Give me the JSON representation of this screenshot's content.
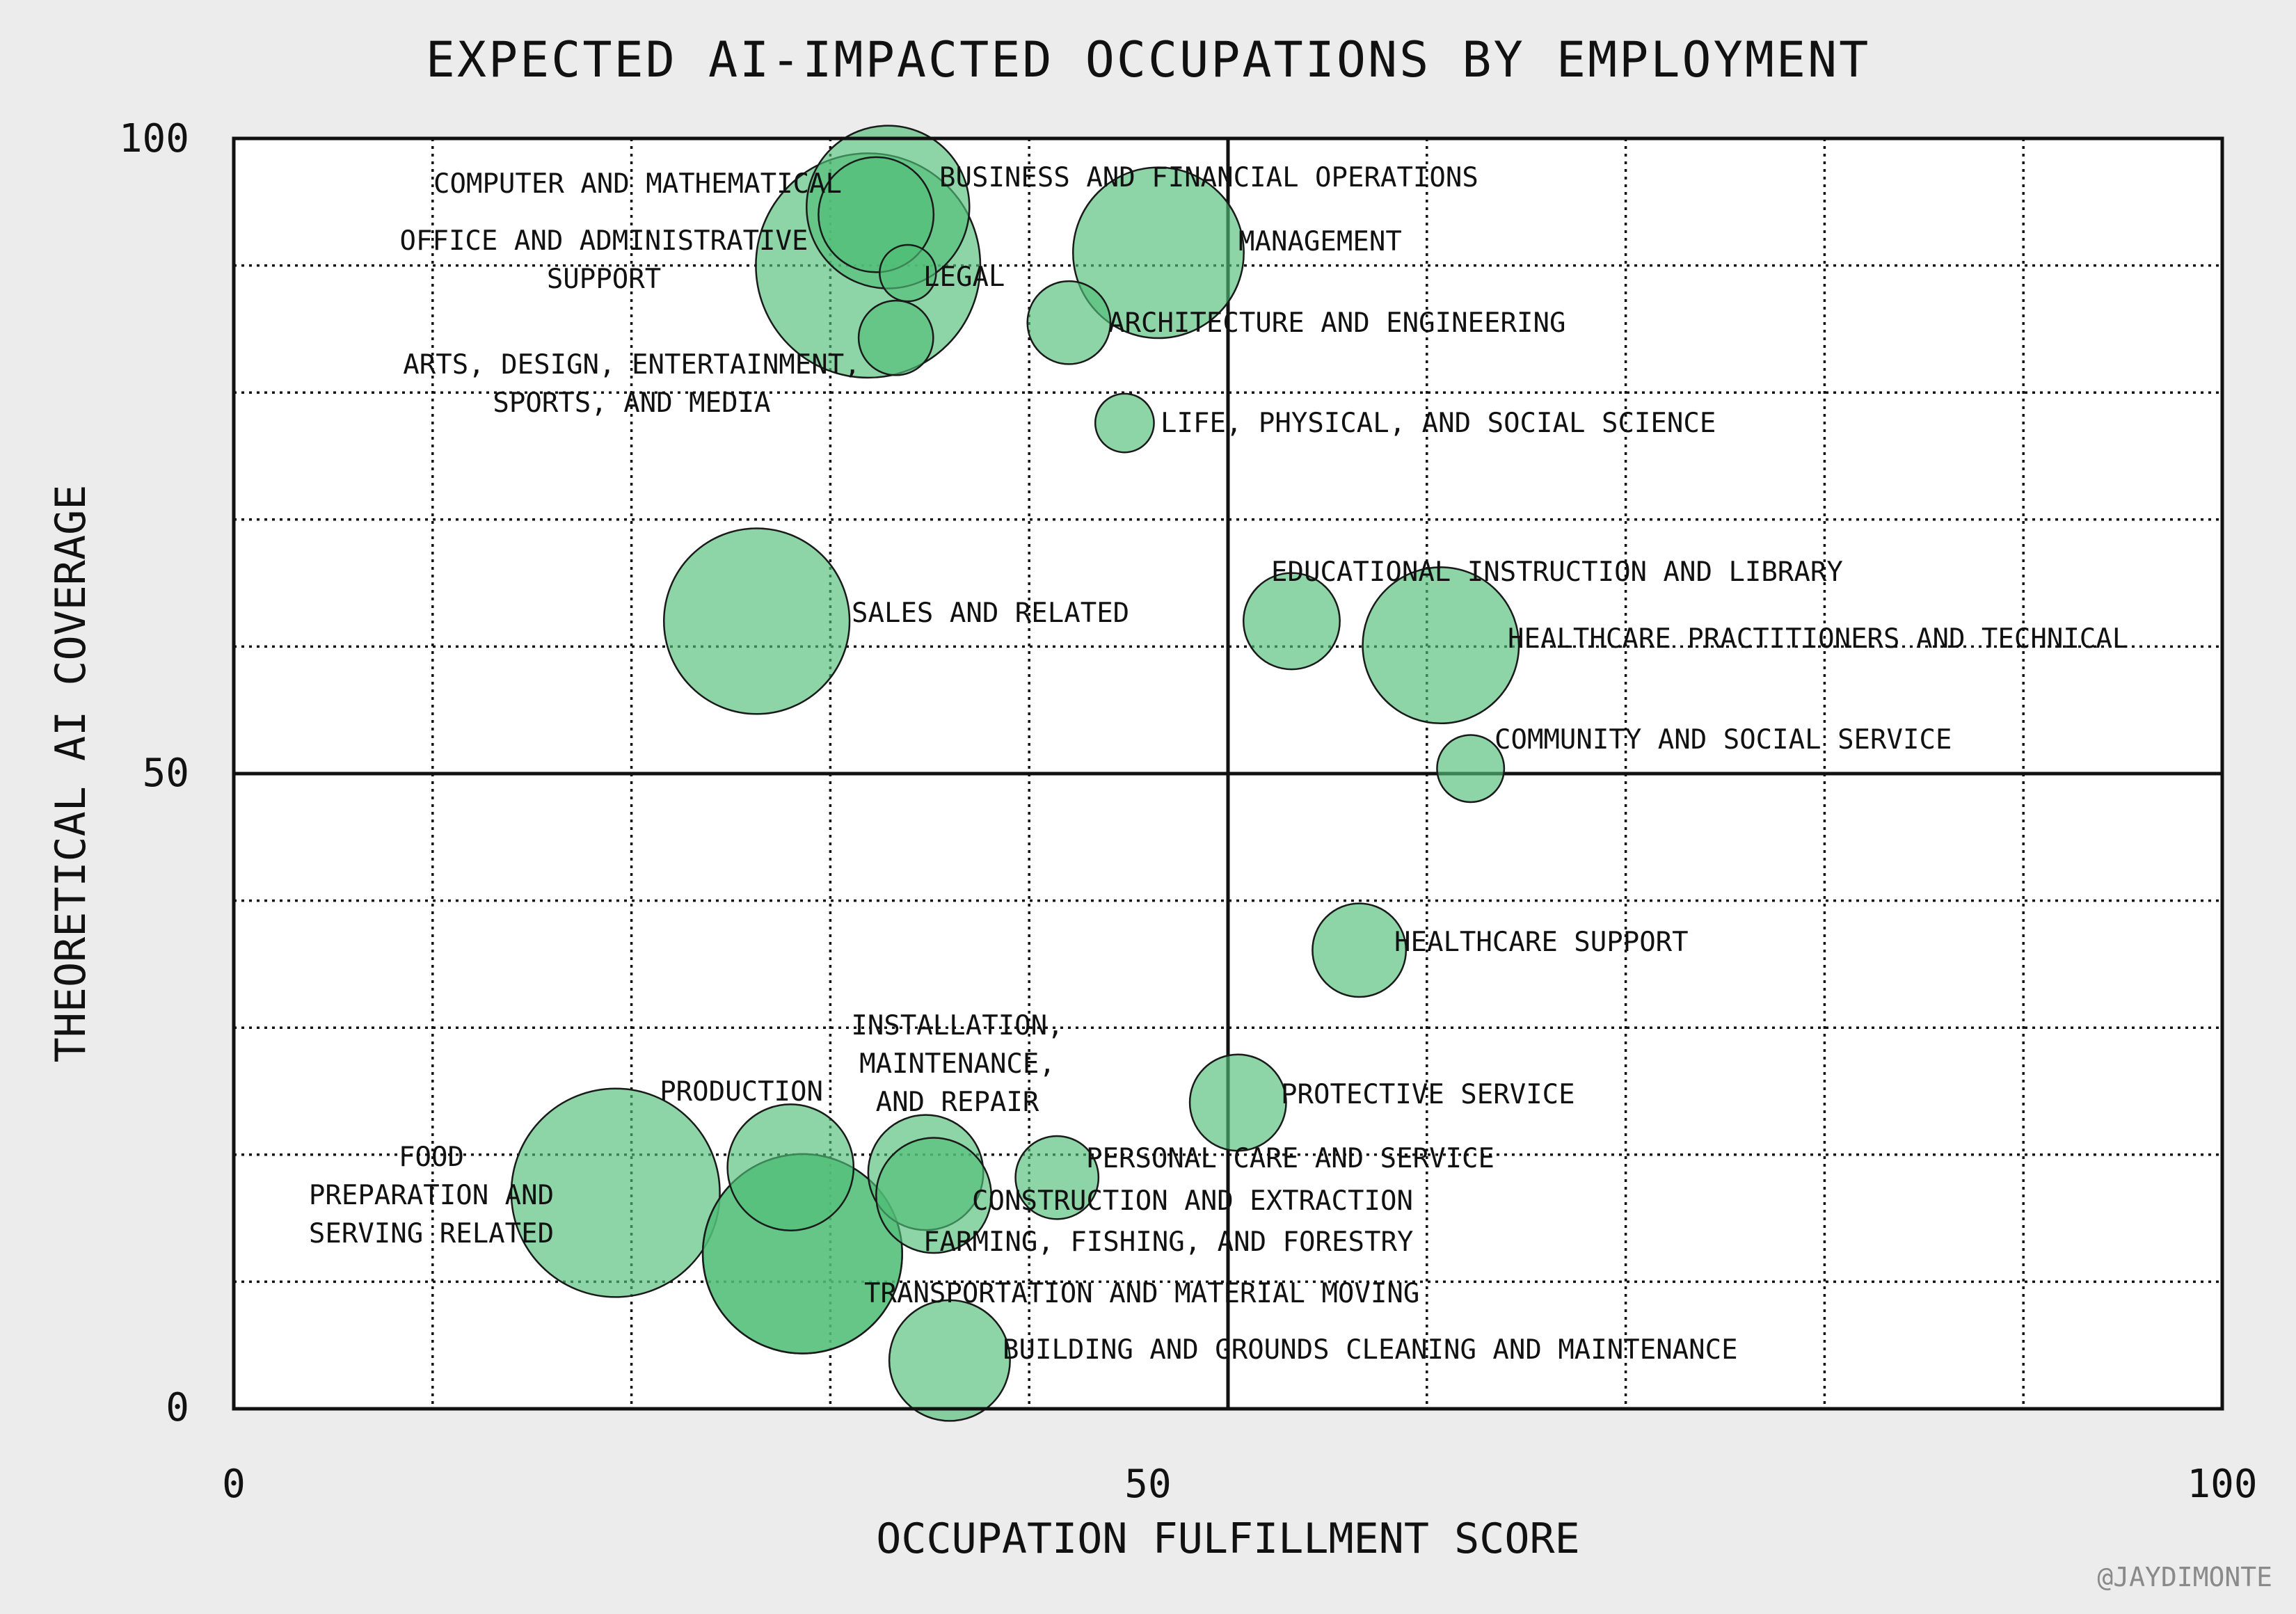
{
  "chart_data": {
    "type": "scatter",
    "title": "EXPECTED AI-IMPACTED OCCUPATIONS BY EMPLOYMENT",
    "xlabel": "OCCUPATION FULFILLMENT SCORE",
    "ylabel": "THEORETICAL AI COVERAGE",
    "xlim": [
      0,
      100
    ],
    "ylim": [
      0,
      100
    ],
    "x_ticks": [
      "0",
      "50",
      "100"
    ],
    "y_ticks": [
      "0",
      "50",
      "100"
    ],
    "grid": true,
    "size_encoding": "employment",
    "credit": "@JAYDIMONTE",
    "colors": {
      "bubble": "#50be78",
      "frame": "#111111",
      "background": "#ececec"
    },
    "points": [
      {
        "label": [
          "COMPUTER AND MATHEMATICAL"
        ],
        "x": 32.3,
        "y": 94.0,
        "size": 5.0
      },
      {
        "label": [
          "BUSINESS AND FINANCIAL OPERATIONS"
        ],
        "x": 32.9,
        "y": 94.6,
        "size": 10.0
      },
      {
        "label": [
          "OFFICE AND ADMINISTRATIVE",
          "SUPPORT"
        ],
        "x": 31.9,
        "y": 90.0,
        "size": 19.0
      },
      {
        "label": [
          "MANAGEMENT"
        ],
        "x": 46.5,
        "y": 91.0,
        "size": 11.0
      },
      {
        "label": [
          "LEGAL"
        ],
        "x": 33.9,
        "y": 89.4,
        "size": 1.2
      },
      {
        "label": [
          "ARCHITECTURE AND ENGINEERING"
        ],
        "x": 42.0,
        "y": 85.5,
        "size": 2.6
      },
      {
        "label": [
          "ARTS, DESIGN, ENTERTAINMENT,",
          "SPORTS, AND MEDIA"
        ],
        "x": 33.3,
        "y": 84.3,
        "size": 2.1
      },
      {
        "label": [
          "LIFE, PHYSICAL, AND SOCIAL SCIENCE"
        ],
        "x": 44.8,
        "y": 77.6,
        "size": 1.3
      },
      {
        "label": [
          "SALES AND RELATED"
        ],
        "x": 26.3,
        "y": 62.0,
        "size": 13.0
      },
      {
        "label": [
          "EDUCATIONAL INSTRUCTION AND LIBRARY"
        ],
        "x": 53.2,
        "y": 62.0,
        "size": 3.5
      },
      {
        "label": [
          "HEALTHCARE PRACTITIONERS AND TECHNICAL"
        ],
        "x": 60.7,
        "y": 60.1,
        "size": 9.2
      },
      {
        "label": [
          "COMMUNITY AND SOCIAL SERVICE"
        ],
        "x": 62.2,
        "y": 50.4,
        "size": 1.7
      },
      {
        "label": [
          "HEALTHCARE SUPPORT"
        ],
        "x": 56.6,
        "y": 36.1,
        "size": 3.3
      },
      {
        "label": [
          "PROTECTIVE SERVICE"
        ],
        "x": 50.5,
        "y": 24.1,
        "size": 3.5
      },
      {
        "label": [
          "PRODUCTION"
        ],
        "x": 28.0,
        "y": 19.0,
        "size": 6.0
      },
      {
        "label": [
          "INSTALLATION,",
          "MAINTENANCE,",
          "AND REPAIR"
        ],
        "x": 34.8,
        "y": 18.6,
        "size": 5.0
      },
      {
        "label": [
          "PERSONAL CARE AND SERVICE"
        ],
        "x": 41.4,
        "y": 18.2,
        "size": 2.6
      },
      {
        "label": [
          "CONSTRUCTION AND EXTRACTION"
        ],
        "x": 35.2,
        "y": 16.8,
        "size": 5.0
      },
      {
        "label": [
          "FOOD",
          "PREPARATION AND",
          "SERVING RELATED"
        ],
        "x": 19.2,
        "y": 17.0,
        "size": 16.4
      },
      {
        "label": [
          "FARMING, FISHING, AND FORESTRY"
        ],
        "x": 28.6,
        "y": 12.2,
        "size": 15.0
      },
      {
        "label": [
          "TRANSPORTATION AND MATERIAL MOVING"
        ],
        "x": 28.6,
        "y": 12.2,
        "size": 15.0
      },
      {
        "label": [
          "BUILDING AND GROUNDS CLEANING AND MAINTENANCE"
        ],
        "x": 36.0,
        "y": 3.8,
        "size": 5.5
      }
    ]
  }
}
